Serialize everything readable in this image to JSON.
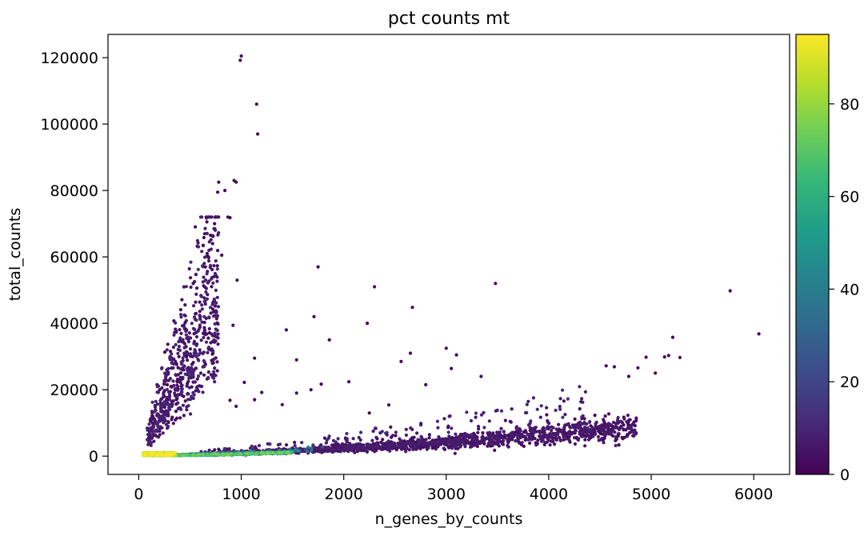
{
  "chart_data": {
    "type": "scatter",
    "title": "pct counts mt",
    "xlabel": "n_genes_by_counts",
    "ylabel": "total_counts",
    "xlim": [
      -300,
      6350
    ],
    "ylim": [
      -5500,
      127000
    ],
    "xticks": [
      0,
      1000,
      2000,
      3000,
      4000,
      5000,
      6000
    ],
    "xtick_labels": [
      "0",
      "1000",
      "2000",
      "3000",
      "4000",
      "5000",
      "6000"
    ],
    "yticks": [
      0,
      20000,
      40000,
      60000,
      80000,
      100000,
      120000
    ],
    "ytick_labels": [
      "0",
      "20000",
      "40000",
      "60000",
      "80000",
      "100000",
      "120000"
    ],
    "grid": false,
    "color_variable": "pct counts mt",
    "colormap": "viridis",
    "colorbar": {
      "range": [
        0,
        95
      ],
      "ticks": [
        0,
        20,
        40,
        60,
        80
      ],
      "tick_labels": [
        "0",
        "20",
        "40",
        "60",
        "80"
      ],
      "colors": [
        "#440154",
        "#482878",
        "#3e4989",
        "#31688e",
        "#26828e",
        "#1f9e89",
        "#35b779",
        "#6ece58",
        "#b5de2b",
        "#fde725"
      ]
    },
    "outlier_points": [
      [
        1000,
        120500,
        2
      ],
      [
        990,
        119200,
        2
      ],
      [
        1150,
        106000,
        2
      ],
      [
        1160,
        97000,
        2
      ],
      [
        780,
        82500,
        2
      ],
      [
        930,
        83000,
        2
      ],
      [
        950,
        82500,
        2
      ],
      [
        840,
        80000,
        2
      ],
      [
        770,
        79500,
        2
      ],
      [
        870,
        72000,
        2
      ],
      [
        890,
        71800,
        2
      ],
      [
        740,
        70000,
        2
      ],
      [
        700,
        66500,
        2
      ],
      [
        720,
        64000,
        2
      ],
      [
        680,
        60000,
        2
      ],
      [
        810,
        60500,
        2
      ],
      [
        650,
        57000,
        2
      ],
      [
        960,
        53000,
        2
      ],
      [
        1750,
        57000,
        2
      ],
      [
        2300,
        51000,
        2
      ],
      [
        3480,
        52000,
        2
      ],
      [
        5770,
        49800,
        2
      ],
      [
        2670,
        44800,
        2
      ],
      [
        1710,
        42000,
        2
      ],
      [
        2230,
        40000,
        2
      ],
      [
        1440,
        38000,
        2
      ],
      [
        6050,
        36800,
        2
      ],
      [
        5210,
        35800,
        2
      ],
      [
        1860,
        35000,
        2
      ],
      [
        3000,
        32500,
        2
      ],
      [
        2650,
        31000,
        2
      ],
      [
        1130,
        29500,
        2
      ],
      [
        1540,
        29000,
        2
      ],
      [
        3100,
        30500,
        2
      ],
      [
        4950,
        29800,
        2
      ],
      [
        5280,
        29700,
        2
      ],
      [
        5170,
        30300,
        2
      ],
      [
        5130,
        29900,
        2
      ],
      [
        4870,
        26600,
        2
      ],
      [
        4640,
        26900,
        2
      ],
      [
        4560,
        27200,
        2
      ],
      [
        920,
        39400,
        2
      ],
      [
        2560,
        28500,
        2
      ],
      [
        2050,
        22400,
        2
      ],
      [
        1780,
        21700,
        2
      ],
      [
        1030,
        22200,
        2
      ],
      [
        1680,
        20000,
        2
      ],
      [
        1540,
        19000,
        2
      ],
      [
        1200,
        19200,
        2
      ],
      [
        3340,
        24000,
        2
      ],
      [
        2800,
        21500,
        2
      ],
      [
        5040,
        25000,
        2
      ],
      [
        4780,
        24000,
        2
      ],
      [
        1400,
        15500,
        2
      ],
      [
        1130,
        17000,
        2
      ],
      [
        950,
        15000,
        2
      ],
      [
        890,
        16800,
        2
      ],
      [
        3050,
        26400,
        2
      ],
      [
        2250,
        13000,
        2
      ],
      [
        2440,
        15400,
        2
      ]
    ]
  }
}
